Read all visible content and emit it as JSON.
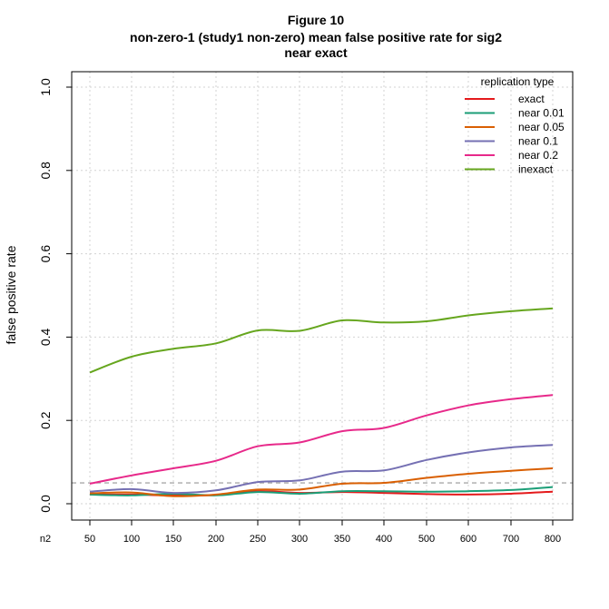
{
  "chart_data": {
    "type": "line",
    "title_lines": [
      "Figure 10",
      "non-zero-1 (study1 non-zero) mean false positive rate for sig2",
      "near exact"
    ],
    "xlabel": "n2",
    "ylabel": "false positive rate",
    "x": [
      50,
      100,
      150,
      200,
      250,
      300,
      350,
      400,
      500,
      600,
      700,
      800
    ],
    "x_tick_labels": [
      "50",
      "100",
      "150",
      "200",
      "250",
      "300",
      "350",
      "400",
      "500",
      "600",
      "700",
      "800"
    ],
    "ylim": [
      0,
      1
    ],
    "y_ticks": [
      0.0,
      0.2,
      0.4,
      0.6,
      0.8,
      1.0
    ],
    "y_tick_labels": [
      "0.0",
      "0.2",
      "0.4",
      "0.6",
      "0.8",
      "1.0"
    ],
    "reference_line": 0.05,
    "grid": true,
    "legend_title": "replication type",
    "legend_position": "top-right",
    "series": [
      {
        "name": "exact",
        "color": "#e41a1c",
        "values": [
          0.022,
          0.022,
          0.02,
          0.021,
          0.03,
          0.026,
          0.028,
          0.026,
          0.023,
          0.022,
          0.024,
          0.029
        ]
      },
      {
        "name": "near 0.01",
        "color": "#1b9e77",
        "values": [
          0.022,
          0.02,
          0.024,
          0.02,
          0.028,
          0.024,
          0.03,
          0.03,
          0.029,
          0.03,
          0.033,
          0.04
        ]
      },
      {
        "name": "near 0.05",
        "color": "#d95f02",
        "values": [
          0.025,
          0.027,
          0.018,
          0.022,
          0.034,
          0.034,
          0.048,
          0.05,
          0.062,
          0.072,
          0.079,
          0.085
        ]
      },
      {
        "name": "near 0.1",
        "color": "#7570b3",
        "values": [
          0.029,
          0.035,
          0.026,
          0.032,
          0.052,
          0.056,
          0.077,
          0.08,
          0.105,
          0.123,
          0.135,
          0.141
        ]
      },
      {
        "name": "near 0.2",
        "color": "#e7298a",
        "values": [
          0.048,
          0.068,
          0.085,
          0.103,
          0.138,
          0.147,
          0.174,
          0.182,
          0.212,
          0.236,
          0.251,
          0.261
        ]
      },
      {
        "name": "inexact",
        "color": "#66a61e",
        "values": [
          0.315,
          0.353,
          0.372,
          0.385,
          0.416,
          0.415,
          0.44,
          0.435,
          0.438,
          0.452,
          0.462,
          0.469
        ]
      }
    ],
    "reference_line_color": "#aaaaaa",
    "grid_color": "#d3d3d3"
  }
}
